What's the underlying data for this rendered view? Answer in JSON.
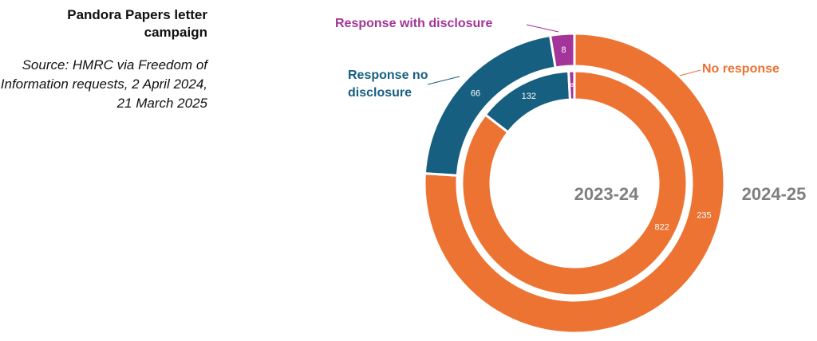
{
  "chart_data": {
    "type": "donut",
    "title": "Pandora Papers letter campaign",
    "subtitle": "Source: HMRC via Freedom of Information requests, 2 April 2024, 21 March 2025",
    "categories": [
      "No response",
      "Response no disclosure",
      "Response with disclosure"
    ],
    "colors": [
      "#ec7332",
      "#165f80",
      "#a3349a"
    ],
    "series": [
      {
        "name": "2023-24",
        "values": [
          822,
          132,
          8
        ]
      },
      {
        "name": "2024-25",
        "values": [
          235,
          66,
          8
        ]
      }
    ]
  }
}
